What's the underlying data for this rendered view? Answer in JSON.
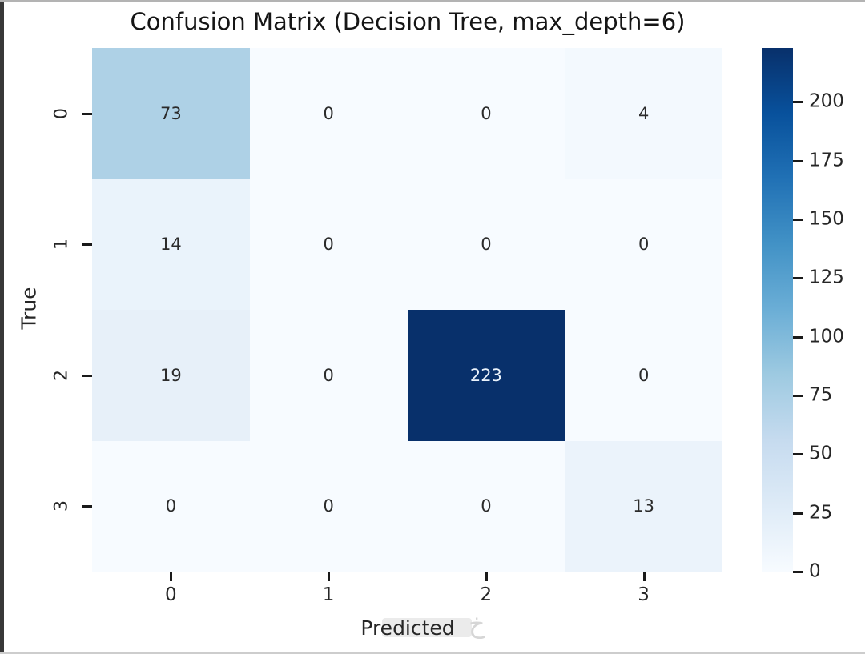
{
  "figure": {
    "title": "Confusion Matrix (Decision Tree, max_depth=6)",
    "x_axis_label": "Predicted",
    "y_axis_label": "True",
    "watermark_glyph": "خ"
  },
  "colors": {
    "background": "#ffffff",
    "title_text": "#151515",
    "tick_text": "#262626",
    "annotation_dark_text": "#2b2b2b",
    "annotation_light_text": "#eaf2fb",
    "left_edge": "#383838",
    "heatmap_min": "#f7fbff",
    "heatmap_max": "#08306b",
    "colormap_stops_bottom_to_top": [
      "#f7fbff",
      "#deebf7",
      "#c6dbef",
      "#9ecae1",
      "#6baed6",
      "#4292c6",
      "#2171b5",
      "#08519c",
      "#08306b"
    ]
  },
  "chart_data": {
    "type": "heatmap",
    "title": "Confusion Matrix (Decision Tree, max_depth=6)",
    "xlabel": "Predicted",
    "ylabel": "True",
    "x_categories": [
      "0",
      "1",
      "2",
      "3"
    ],
    "y_categories": [
      "0",
      "1",
      "2",
      "3"
    ],
    "matrix": [
      [
        73,
        0,
        0,
        4
      ],
      [
        14,
        0,
        0,
        0
      ],
      [
        19,
        0,
        223,
        0
      ],
      [
        0,
        0,
        0,
        13
      ]
    ],
    "vmin": 0,
    "vmax": 223,
    "colormap": "Blues",
    "colorbar_position": "right",
    "colorbar_ticks": [
      0,
      25,
      50,
      75,
      100,
      125,
      150,
      175,
      200
    ],
    "grid": false,
    "cell_colors": [
      [
        "#aed1e6",
        "#f7fbff",
        "#f7fbff",
        "#f3f9fe"
      ],
      [
        "#eaf3fb",
        "#f7fbff",
        "#f7fbff",
        "#f7fbff"
      ],
      [
        "#e7f0f9",
        "#f7fbff",
        "#08306b",
        "#f7fbff"
      ],
      [
        "#f7fbff",
        "#f7fbff",
        "#f7fbff",
        "#ebf3fb"
      ]
    ],
    "cell_text_colors": [
      [
        "#2b2b2b",
        "#2b2b2b",
        "#2b2b2b",
        "#2b2b2b"
      ],
      [
        "#2b2b2b",
        "#2b2b2b",
        "#2b2b2b",
        "#2b2b2b"
      ],
      [
        "#2b2b2b",
        "#2b2b2b",
        "#eaf2fb",
        "#2b2b2b"
      ],
      [
        "#2b2b2b",
        "#2b2b2b",
        "#2b2b2b",
        "#2b2b2b"
      ]
    ]
  }
}
